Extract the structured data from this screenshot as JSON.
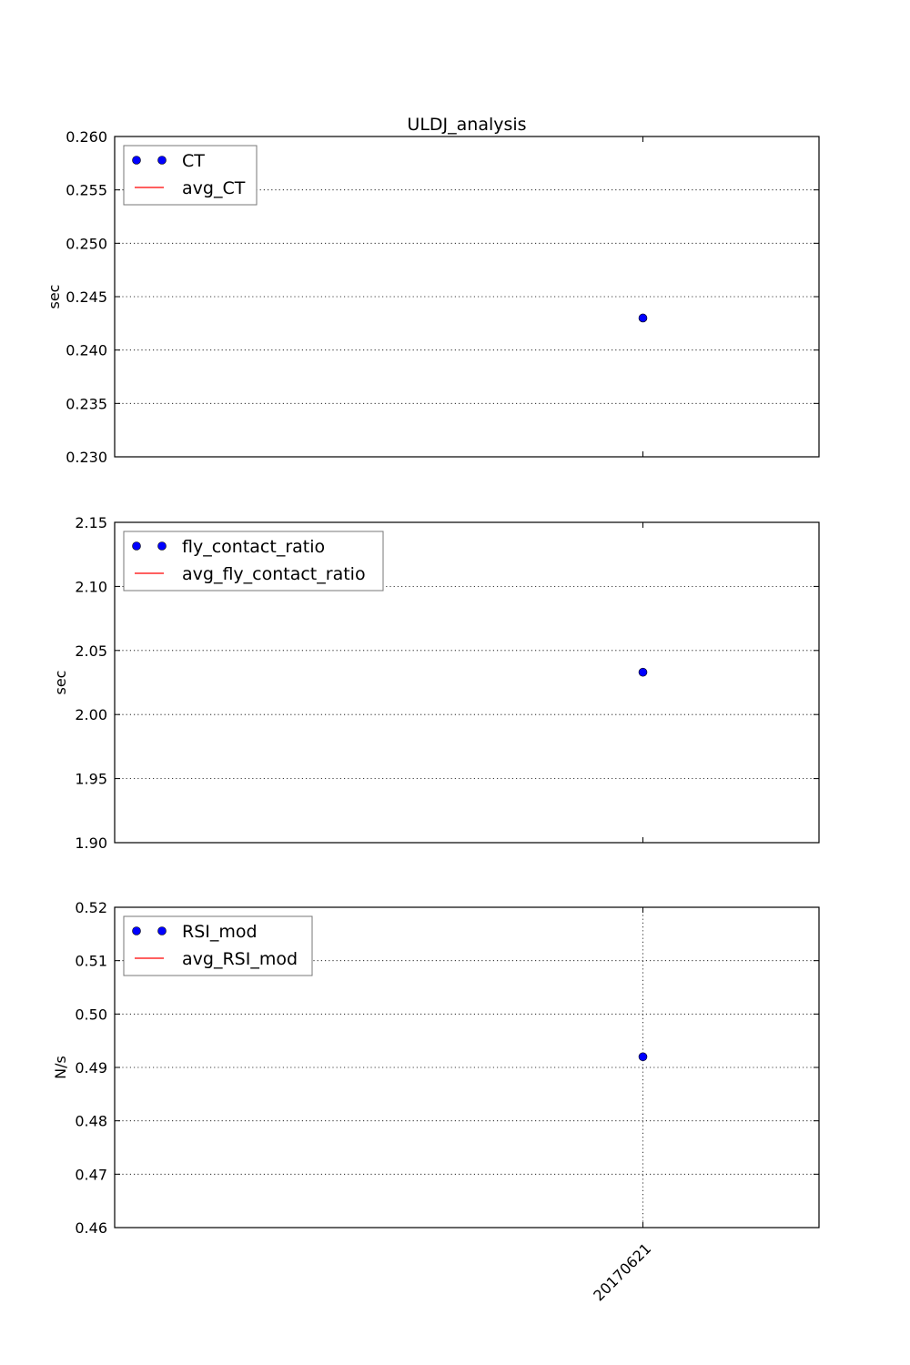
{
  "chart_data": [
    {
      "type": "scatter",
      "title": "ULDJ_analysis",
      "xlabel": "",
      "ylabel": "sec",
      "ylim": [
        0.23,
        0.26
      ],
      "yticks": [
        "0.230",
        "0.235",
        "0.240",
        "0.245",
        "0.250",
        "0.255",
        "0.260"
      ],
      "ytick_values": [
        0.23,
        0.235,
        0.24,
        0.245,
        0.25,
        0.255,
        0.26
      ],
      "categories": [
        "20170621"
      ],
      "show_xticklabels": false,
      "grid": true,
      "grid_x": false,
      "legend_position": "top-left",
      "series": [
        {
          "name": "CT",
          "kind": "points",
          "color": "#0000ff",
          "values": [
            0.243
          ]
        },
        {
          "name": "avg_CT",
          "kind": "line",
          "color": "#ff0000",
          "values": [
            0.243
          ]
        }
      ]
    },
    {
      "type": "scatter",
      "title": "",
      "xlabel": "",
      "ylabel": "sec",
      "ylim": [
        1.9,
        2.15
      ],
      "yticks": [
        "1.90",
        "1.95",
        "2.00",
        "2.05",
        "2.10",
        "2.15"
      ],
      "ytick_values": [
        1.9,
        1.95,
        2.0,
        2.05,
        2.1,
        2.15
      ],
      "categories": [
        "20170621"
      ],
      "show_xticklabels": false,
      "grid": true,
      "grid_x": false,
      "legend_position": "top-left",
      "series": [
        {
          "name": "fly_contact_ratio",
          "kind": "points",
          "color": "#0000ff",
          "values": [
            2.033
          ]
        },
        {
          "name": "avg_fly_contact_ratio",
          "kind": "line",
          "color": "#ff0000",
          "values": [
            2.033
          ]
        }
      ]
    },
    {
      "type": "scatter",
      "title": "",
      "xlabel": "",
      "ylabel": "N/s",
      "ylim": [
        0.46,
        0.52
      ],
      "yticks": [
        "0.46",
        "0.47",
        "0.48",
        "0.49",
        "0.50",
        "0.51",
        "0.52"
      ],
      "ytick_values": [
        0.46,
        0.47,
        0.48,
        0.49,
        0.5,
        0.51,
        0.52
      ],
      "categories": [
        "20170621"
      ],
      "show_xticklabels": true,
      "grid": true,
      "grid_x": true,
      "legend_position": "top-left",
      "series": [
        {
          "name": "RSI_mod",
          "kind": "points",
          "color": "#0000ff",
          "values": [
            0.492
          ]
        },
        {
          "name": "avg_RSI_mod",
          "kind": "line",
          "color": "#ff0000",
          "values": [
            0.492
          ]
        }
      ]
    }
  ]
}
